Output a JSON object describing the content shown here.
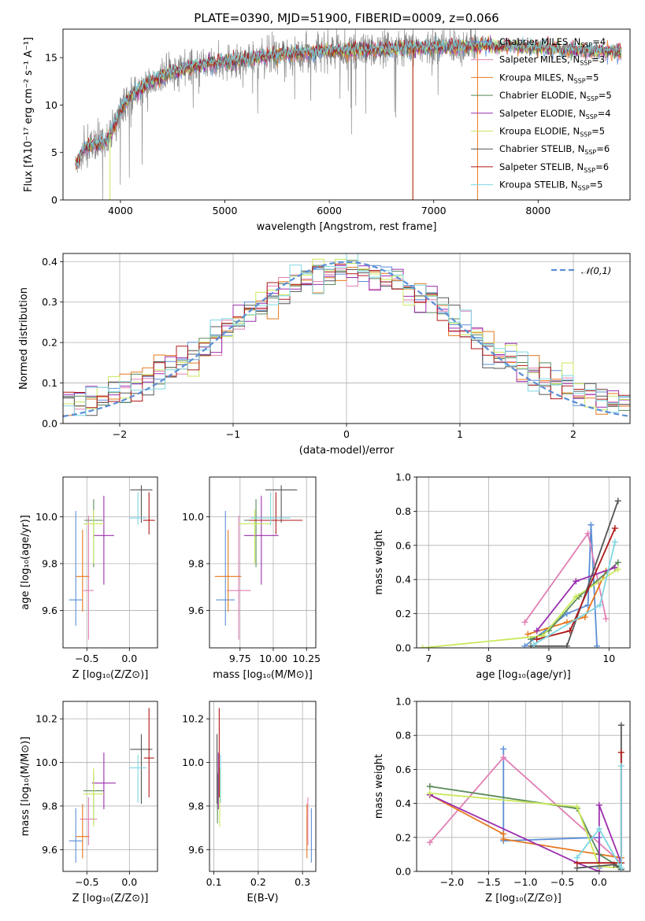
{
  "title": "PLATE=0390, MJD=51900, FIBERID=0009, z=0.066",
  "colors": {
    "Chabrier MILES": "#5b8fd6",
    "Salpeter MILES": "#e17fb4",
    "Kroupa MILES": "#e6781e",
    "Chabrier ELODIE": "#5a8a5a",
    "Salpeter ELODIE": "#9c2fae",
    "Kroupa ELODIE": "#c9e85a",
    "Chabrier STELIB": "#555555",
    "Salpeter STELIB": "#b01818",
    "Kroupa STELIB": "#7ed6e2",
    "gaussian": "#5b8fd6",
    "data": "#888888"
  },
  "chart_data": [
    {
      "id": "spectrum",
      "type": "line",
      "title": "PLATE=0390, MJD=51900, FIBERID=0009, z=0.066",
      "xlabel": "wavelength [Angstrom, rest frame]",
      "ylabel": "Flux [fλ10⁻¹⁷ erg cm⁻² s⁻¹ A⁻¹]",
      "xlim": [
        3450,
        8880
      ],
      "ylim": [
        0,
        18
      ],
      "xticks": [
        4000,
        5000,
        6000,
        7000,
        8000
      ],
      "yticks": [
        0,
        5,
        10,
        15
      ],
      "legend_position": "right",
      "legend": [
        {
          "series": "Chabrier MILES",
          "label": "Chabrier MILES, N",
          "sub": "SSP",
          "suffix": "=4"
        },
        {
          "series": "Salpeter MILES",
          "label": "Salpeter MILES, N",
          "sub": "SSP",
          "suffix": "=3"
        },
        {
          "series": "Kroupa MILES",
          "label": "Kroupa MILES, N",
          "sub": "SSP",
          "suffix": "=5"
        },
        {
          "series": "Chabrier ELODIE",
          "label": "Chabrier ELODIE, N",
          "sub": "SSP",
          "suffix": "=5"
        },
        {
          "series": "Salpeter ELODIE",
          "label": "Salpeter ELODIE, N",
          "sub": "SSP",
          "suffix": "=4"
        },
        {
          "series": "Kroupa ELODIE",
          "label": "Kroupa ELODIE, N",
          "sub": "SSP",
          "suffix": "=5"
        },
        {
          "series": "Chabrier STELIB",
          "label": "Chabrier STELIB, N",
          "sub": "SSP",
          "suffix": "=6"
        },
        {
          "series": "Salpeter STELIB",
          "label": "Salpeter STELIB, N",
          "sub": "SSP",
          "suffix": "=6"
        },
        {
          "series": "Kroupa STELIB",
          "label": "Kroupa STELIB, N",
          "sub": "SSP",
          "suffix": "=5"
        }
      ],
      "continuum": [
        [
          3580,
          3.8
        ],
        [
          3650,
          5.5
        ],
        [
          3750,
          5.8
        ],
        [
          3850,
          6.0
        ],
        [
          3930,
          7.5
        ],
        [
          4000,
          9.5
        ],
        [
          4100,
          11.0
        ],
        [
          4300,
          12.5
        ],
        [
          4500,
          13.5
        ],
        [
          4800,
          14.3
        ],
        [
          5200,
          14.8
        ],
        [
          5500,
          15.3
        ],
        [
          6000,
          15.7
        ],
        [
          6500,
          15.8
        ],
        [
          7000,
          16.1
        ],
        [
          7400,
          16.2
        ],
        [
          7500,
          16.3
        ],
        [
          8000,
          16.0
        ],
        [
          8500,
          15.7
        ],
        [
          8800,
          15.6
        ]
      ],
      "data_x_range": [
        3570,
        7420
      ],
      "model_x_range": [
        3570,
        8800
      ]
    },
    {
      "id": "residuals",
      "type": "histogram",
      "xlabel": "(data-model)/error",
      "ylabel": "Normed distribution",
      "xlim": [
        -2.5,
        2.5
      ],
      "ylim": [
        0,
        0.42
      ],
      "xticks": [
        -2,
        -1,
        0,
        1,
        2
      ],
      "yticks": [
        0.0,
        0.1,
        0.2,
        0.3,
        0.4
      ],
      "legend_label": "𝒩(0,1)",
      "bin_width": 0.1,
      "gaussian": {
        "mu": 0,
        "sigma": 1
      }
    },
    {
      "id": "age-vs-Z",
      "type": "scatter",
      "xlabel": "Z [log₁₀(Z/Z⊙)]",
      "ylabel": "age  [log₁₀(age/yr)]",
      "xlim": [
        -0.78,
        0.33
      ],
      "ylim": [
        9.44,
        10.17
      ],
      "xticks": [
        -0.5,
        0.0
      ],
      "yticks": [
        9.6,
        9.8,
        10.0
      ],
      "points": [
        {
          "series": "Chabrier MILES",
          "x": -0.63,
          "xerr": 0.08,
          "y": 9.645,
          "yerr": [
            0.11,
            0.38
          ]
        },
        {
          "series": "Salpeter MILES",
          "x": -0.48,
          "xerr": 0.06,
          "y": 9.685,
          "yerr": [
            0.21,
            0.32
          ]
        },
        {
          "series": "Kroupa MILES",
          "x": -0.55,
          "xerr": 0.08,
          "y": 9.745,
          "yerr": [
            0.15,
            0.2
          ]
        },
        {
          "series": "Chabrier ELODIE",
          "x": -0.42,
          "xerr": 0.11,
          "y": 9.985,
          "yerr": [
            0.2,
            0.09
          ]
        },
        {
          "series": "Salpeter ELODIE",
          "x": -0.3,
          "xerr": 0.12,
          "y": 9.92,
          "yerr": [
            0.21,
            0.17
          ]
        },
        {
          "series": "Kroupa ELODIE",
          "x": -0.42,
          "xerr": 0.12,
          "y": 9.97,
          "yerr": [
            0.17,
            0.06
          ]
        },
        {
          "series": "Chabrier STELIB",
          "x": 0.14,
          "xerr": 0.13,
          "y": 10.115,
          "yerr": [
            0.14,
            0.02
          ]
        },
        {
          "series": "Salpeter STELIB",
          "x": 0.23,
          "xerr": 0.07,
          "y": 9.985,
          "yerr": [
            0.06,
            0.12
          ]
        },
        {
          "series": "Kroupa STELIB",
          "x": 0.1,
          "xerr": 0.1,
          "y": 9.995,
          "yerr": [
            0.03,
            0.11
          ]
        }
      ]
    },
    {
      "id": "age-vs-mass",
      "type": "scatter",
      "xlabel": "mass [log₁₀(M/M⊙)]",
      "ylabel": "",
      "xlim": [
        9.52,
        10.32
      ],
      "ylim": [
        9.44,
        10.17
      ],
      "xticks": [
        9.75,
        10.0,
        10.25
      ],
      "yticks": [
        9.6,
        9.8,
        10.0
      ],
      "points": [
        {
          "series": "Chabrier MILES",
          "x": 9.64,
          "xerr": 0.07,
          "y": 9.645,
          "yerr": [
            0.11,
            0.38
          ]
        },
        {
          "series": "Salpeter MILES",
          "x": 9.74,
          "xerr": 0.09,
          "y": 9.685,
          "yerr": [
            0.21,
            0.32
          ]
        },
        {
          "series": "Kroupa MILES",
          "x": 9.66,
          "xerr": 0.1,
          "y": 9.745,
          "yerr": [
            0.15,
            0.2
          ]
        },
        {
          "series": "Chabrier ELODIE",
          "x": 9.87,
          "xerr": 0.09,
          "y": 9.985,
          "yerr": [
            0.2,
            0.09
          ]
        },
        {
          "series": "Salpeter ELODIE",
          "x": 9.91,
          "xerr": 0.13,
          "y": 9.92,
          "yerr": [
            0.21,
            0.17
          ]
        },
        {
          "series": "Kroupa ELODIE",
          "x": 9.86,
          "xerr": 0.12,
          "y": 9.97,
          "yerr": [
            0.17,
            0.06
          ]
        },
        {
          "series": "Chabrier STELIB",
          "x": 10.06,
          "xerr": 0.12,
          "y": 10.115,
          "yerr": [
            0.14,
            0.02
          ]
        },
        {
          "series": "Salpeter STELIB",
          "x": 10.02,
          "xerr": 0.2,
          "y": 9.985,
          "yerr": [
            0.06,
            0.12
          ]
        },
        {
          "series": "Kroupa STELIB",
          "x": 9.98,
          "xerr": 0.15,
          "y": 9.995,
          "yerr": [
            0.03,
            0.11
          ]
        }
      ]
    },
    {
      "id": "weight-vs-age",
      "type": "line",
      "xlabel": "age  [log₁₀(age/yr)]",
      "ylabel": "mass weight",
      "xlim": [
        6.8,
        10.35
      ],
      "ylim": [
        0,
        1.0
      ],
      "xticks": [
        7,
        8,
        9,
        10
      ],
      "yticks": [
        0.0,
        0.2,
        0.4,
        0.6,
        0.8,
        1.0
      ],
      "series": [
        {
          "name": "Chabrier MILES",
          "points": [
            [
              8.6,
              0.01
            ],
            [
              9.3,
              0.2
            ],
            [
              9.65,
              0.25
            ],
            [
              9.7,
              0.72
            ],
            [
              9.8,
              0.01
            ]
          ]
        },
        {
          "name": "Salpeter MILES",
          "points": [
            [
              8.6,
              0.15
            ],
            [
              9.65,
              0.67
            ],
            [
              9.95,
              0.17
            ]
          ]
        },
        {
          "name": "Kroupa MILES",
          "points": [
            [
              8.65,
              0.08
            ],
            [
              9.3,
              0.15
            ],
            [
              9.6,
              0.18
            ],
            [
              9.95,
              0.45
            ]
          ]
        },
        {
          "name": "Chabrier ELODIE",
          "points": [
            [
              8.7,
              0.05
            ],
            [
              9.0,
              0.1
            ],
            [
              9.5,
              0.3
            ],
            [
              10.15,
              0.5
            ]
          ]
        },
        {
          "name": "Salpeter ELODIE",
          "points": [
            [
              8.8,
              0.1
            ],
            [
              9.45,
              0.39
            ],
            [
              10.1,
              0.47
            ]
          ]
        },
        {
          "name": "Kroupa ELODIE",
          "points": [
            [
              6.9,
              0.0
            ],
            [
              8.9,
              0.07
            ],
            [
              9.45,
              0.3
            ],
            [
              10.15,
              0.46
            ]
          ]
        },
        {
          "name": "Chabrier STELIB",
          "points": [
            [
              8.7,
              0.01
            ],
            [
              9.3,
              0.01
            ],
            [
              10.15,
              0.86
            ]
          ]
        },
        {
          "name": "Salpeter STELIB",
          "points": [
            [
              8.8,
              0.05
            ],
            [
              9.35,
              0.1
            ],
            [
              10.1,
              0.7
            ]
          ]
        },
        {
          "name": "Kroupa STELIB",
          "points": [
            [
              8.75,
              0.02
            ],
            [
              9.85,
              0.25
            ],
            [
              10.1,
              0.62
            ]
          ]
        }
      ]
    },
    {
      "id": "mass-vs-Z",
      "type": "scatter",
      "xlabel": "Z [log₁₀(Z/Z⊙)]",
      "ylabel": "mass [log₁₀(M/M⊙)]",
      "xlim": [
        -0.78,
        0.33
      ],
      "ylim": [
        9.5,
        10.28
      ],
      "xticks": [
        -0.5,
        0.0
      ],
      "yticks": [
        9.6,
        9.8,
        10.0,
        10.2
      ],
      "points": [
        {
          "series": "Chabrier MILES",
          "x": -0.63,
          "xerr": 0.08,
          "y": 9.64,
          "yerr": [
            0.1,
            0.15
          ]
        },
        {
          "series": "Salpeter MILES",
          "x": -0.48,
          "xerr": 0.1,
          "y": 9.74,
          "yerr": [
            0.12,
            0.1
          ]
        },
        {
          "series": "Kroupa MILES",
          "x": -0.55,
          "xerr": 0.08,
          "y": 9.66,
          "yerr": [
            0.1,
            0.15
          ]
        },
        {
          "series": "Chabrier ELODIE",
          "x": -0.42,
          "xerr": 0.12,
          "y": 9.87,
          "yerr": [
            0.15,
            0.08
          ]
        },
        {
          "series": "Salpeter ELODIE",
          "x": -0.3,
          "xerr": 0.14,
          "y": 9.905,
          "yerr": [
            0.12,
            0.14
          ]
        },
        {
          "series": "Kroupa ELODIE",
          "x": -0.42,
          "xerr": 0.12,
          "y": 9.855,
          "yerr": [
            0.15,
            0.12
          ]
        },
        {
          "series": "Chabrier STELIB",
          "x": 0.14,
          "xerr": 0.13,
          "y": 10.06,
          "yerr": [
            0.25,
            0.07
          ]
        },
        {
          "series": "Salpeter STELIB",
          "x": 0.23,
          "xerr": 0.06,
          "y": 10.02,
          "yerr": [
            0.18,
            0.23
          ]
        },
        {
          "series": "Kroupa STELIB",
          "x": 0.1,
          "xerr": 0.1,
          "y": 9.975,
          "yerr": [
            0.16,
            0.06
          ]
        }
      ]
    },
    {
      "id": "mass-vs-EBV",
      "type": "scatter",
      "xlabel": "E(B-V)",
      "ylabel": "",
      "xlim": [
        0.09,
        0.33
      ],
      "ylim": [
        9.5,
        10.28
      ],
      "xticks": [
        0.1,
        0.2,
        0.3
      ],
      "yticks": [
        9.6,
        9.8,
        10.0,
        10.2
      ],
      "points": [
        {
          "series": "Chabrier MILES",
          "x": 0.32,
          "xerr": 0.0,
          "y": 9.64,
          "yerr": [
            0.1,
            0.15
          ]
        },
        {
          "series": "Salpeter MILES",
          "x": 0.312,
          "xerr": 0.0,
          "y": 9.74,
          "yerr": [
            0.12,
            0.1
          ]
        },
        {
          "series": "Kroupa MILES",
          "x": 0.31,
          "xerr": 0.0,
          "y": 9.66,
          "yerr": [
            0.1,
            0.15
          ]
        },
        {
          "series": "Chabrier ELODIE",
          "x": 0.108,
          "xerr": 0.0,
          "y": 9.87,
          "yerr": [
            0.15,
            0.08
          ]
        },
        {
          "series": "Salpeter ELODIE",
          "x": 0.11,
          "xerr": 0.0,
          "y": 9.905,
          "yerr": [
            0.12,
            0.14
          ]
        },
        {
          "series": "Kroupa ELODIE",
          "x": 0.113,
          "xerr": 0.0,
          "y": 9.855,
          "yerr": [
            0.15,
            0.12
          ]
        },
        {
          "series": "Chabrier STELIB",
          "x": 0.107,
          "xerr": 0.0,
          "y": 10.06,
          "yerr": [
            0.25,
            0.07
          ]
        },
        {
          "series": "Salpeter STELIB",
          "x": 0.112,
          "xerr": 0.0,
          "y": 10.02,
          "yerr": [
            0.18,
            0.23
          ]
        },
        {
          "series": "Kroupa STELIB",
          "x": 0.115,
          "xerr": 0.0,
          "y": 9.975,
          "yerr": [
            0.16,
            0.06
          ]
        }
      ]
    },
    {
      "id": "weight-vs-Z",
      "type": "line",
      "xlabel": "Z [log₁₀(Z/Z⊙)]",
      "ylabel": "mass weight",
      "xlim": [
        -2.48,
        0.42
      ],
      "ylim": [
        0,
        1.0
      ],
      "xticks": [
        -2.0,
        -1.5,
        -1.0,
        -0.5,
        0.0
      ],
      "yticks": [
        0.0,
        0.2,
        0.4,
        0.6,
        0.8,
        1.0
      ],
      "series": [
        {
          "name": "Chabrier MILES",
          "points": [
            [
              -1.3,
              0.72
            ],
            [
              -1.3,
              0.18
            ],
            [
              0.0,
              0.2
            ],
            [
              0.0,
              0.02
            ]
          ]
        },
        {
          "name": "Salpeter MILES",
          "points": [
            [
              -2.3,
              0.17
            ],
            [
              -1.3,
              0.67
            ],
            [
              0.3,
              0.05
            ]
          ]
        },
        {
          "name": "Kroupa MILES",
          "points": [
            [
              -2.3,
              0.45
            ],
            [
              -1.3,
              0.22
            ],
            [
              -1.3,
              0.19
            ],
            [
              0.3,
              0.08
            ]
          ]
        },
        {
          "name": "Chabrier ELODIE",
          "points": [
            [
              -2.3,
              0.5
            ],
            [
              -0.3,
              0.37
            ],
            [
              0.0,
              0.1
            ],
            [
              0.3,
              0.02
            ]
          ]
        },
        {
          "name": "Salpeter ELODIE",
          "points": [
            [
              -2.3,
              0.45
            ],
            [
              -0.3,
              0.05
            ],
            [
              0.0,
              0.0
            ],
            [
              0.0,
              0.39
            ],
            [
              0.3,
              0.05
            ]
          ]
        },
        {
          "name": "Kroupa ELODIE",
          "points": [
            [
              -2.3,
              0.46
            ],
            [
              -0.3,
              0.38
            ],
            [
              0.0,
              0.03
            ],
            [
              0.3,
              0.02
            ]
          ]
        },
        {
          "name": "Chabrier STELIB",
          "points": [
            [
              -0.3,
              0.02
            ],
            [
              0.2,
              0.04
            ],
            [
              0.3,
              0.01
            ],
            [
              0.3,
              0.86
            ]
          ]
        },
        {
          "name": "Salpeter STELIB",
          "points": [
            [
              -0.3,
              0.05
            ],
            [
              0.3,
              0.05
            ],
            [
              0.3,
              0.7
            ]
          ]
        },
        {
          "name": "Kroupa STELIB",
          "points": [
            [
              -0.3,
              0.08
            ],
            [
              0.0,
              0.25
            ],
            [
              0.3,
              0.02
            ],
            [
              0.3,
              0.62
            ]
          ]
        }
      ]
    }
  ]
}
